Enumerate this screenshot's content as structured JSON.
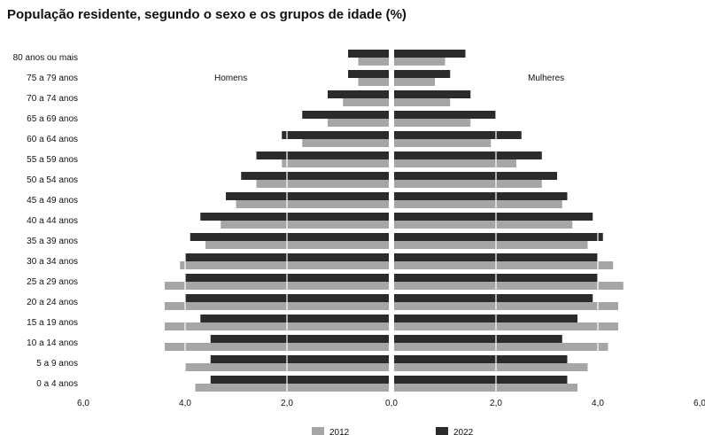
{
  "chart_data": {
    "type": "bar",
    "orientation": "horizontal-pyramid",
    "title": "População residente, segundo o sexo e os grupos de idade (%)",
    "categories": [
      "80 anos ou mais",
      "75 a 79 anos",
      "70 a 74 anos",
      "65 a 69 anos",
      "60 a 64 anos",
      "55 a 59 anos",
      "50 a 54 anos",
      "45 a 49 anos",
      "40 a 44 anos",
      "35 a 39 anos",
      "30 a 34 anos",
      "25 a 29 anos",
      "20 a 24 anos",
      "15 a 19 anos",
      "10 a 14 anos",
      "5 a 9 anos",
      "0 a 4 anos"
    ],
    "groups": {
      "left": "Homens",
      "right": "Mulheres"
    },
    "series": [
      {
        "name": "2012",
        "color": "#a6a6a6",
        "homens": [
          0.6,
          0.6,
          0.9,
          1.2,
          1.7,
          2.1,
          2.6,
          3.0,
          3.3,
          3.6,
          4.1,
          4.4,
          4.4,
          4.4,
          4.4,
          4.0,
          3.8
        ],
        "mulheres": [
          1.0,
          0.8,
          1.1,
          1.5,
          1.9,
          2.4,
          2.9,
          3.3,
          3.5,
          3.8,
          4.3,
          4.5,
          4.4,
          4.4,
          4.2,
          3.8,
          3.6
        ]
      },
      {
        "name": "2022",
        "color": "#2b2b2b",
        "homens": [
          0.8,
          0.8,
          1.2,
          1.7,
          2.1,
          2.6,
          2.9,
          3.2,
          3.7,
          3.9,
          4.0,
          4.0,
          4.0,
          3.7,
          3.5,
          3.5,
          3.5
        ],
        "mulheres": [
          1.4,
          1.1,
          1.5,
          2.0,
          2.5,
          2.9,
          3.2,
          3.4,
          3.9,
          4.1,
          4.0,
          4.0,
          3.9,
          3.6,
          3.3,
          3.4,
          3.4
        ]
      }
    ],
    "xlim": [
      0,
      6
    ],
    "xticks": [
      "6,0",
      "4,0",
      "2,0",
      "0,0",
      "2,0",
      "4,0",
      "6,0"
    ],
    "grid": true,
    "legend": "bottom"
  }
}
